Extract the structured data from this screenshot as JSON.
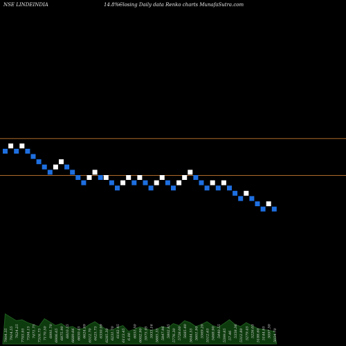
{
  "header": {
    "ticker": "NSE LINDEINDIA",
    "change": "14.8%~",
    "description": "Closing Daily data  Renko  charts MunafaSutra.com"
  },
  "colors": {
    "background": "#000000",
    "up_brick": "#ffffff",
    "down_brick": "#1e6fe0",
    "level_line": "#b06a2a",
    "volume_fill": "#0d3b0d",
    "volume_stroke": "#1f5a1f",
    "volume_label": "#dcdcdc"
  },
  "chart_data": {
    "type": "renko",
    "y_scale": "price (unlabeled)",
    "grid": false,
    "levels": [
      {
        "name": "level-line-upper",
        "value": 2
      },
      {
        "name": "level-line-lower",
        "value": -5
      }
    ],
    "bricks": [
      {
        "i": 0,
        "level": 0,
        "dir": "down"
      },
      {
        "i": 1,
        "level": 1,
        "dir": "up"
      },
      {
        "i": 2,
        "level": 0,
        "dir": "down"
      },
      {
        "i": 3,
        "level": 1,
        "dir": "up"
      },
      {
        "i": 4,
        "level": 0,
        "dir": "down"
      },
      {
        "i": 5,
        "level": -1,
        "dir": "down"
      },
      {
        "i": 6,
        "level": -2,
        "dir": "down"
      },
      {
        "i": 7,
        "level": -3,
        "dir": "down"
      },
      {
        "i": 8,
        "level": -4,
        "dir": "down"
      },
      {
        "i": 9,
        "level": -3,
        "dir": "up"
      },
      {
        "i": 10,
        "level": -2,
        "dir": "up"
      },
      {
        "i": 11,
        "level": -3,
        "dir": "down"
      },
      {
        "i": 12,
        "level": -4,
        "dir": "down"
      },
      {
        "i": 13,
        "level": -5,
        "dir": "down"
      },
      {
        "i": 14,
        "level": -6,
        "dir": "down"
      },
      {
        "i": 15,
        "level": -5,
        "dir": "up"
      },
      {
        "i": 16,
        "level": -4,
        "dir": "up"
      },
      {
        "i": 17,
        "level": -5,
        "dir": "down"
      },
      {
        "i": 18,
        "level": -5,
        "dir": "up"
      },
      {
        "i": 19,
        "level": -6,
        "dir": "down"
      },
      {
        "i": 20,
        "level": -7,
        "dir": "down"
      },
      {
        "i": 21,
        "level": -6,
        "dir": "up"
      },
      {
        "i": 22,
        "level": -5,
        "dir": "up"
      },
      {
        "i": 23,
        "level": -6,
        "dir": "down"
      },
      {
        "i": 24,
        "level": -5,
        "dir": "up"
      },
      {
        "i": 25,
        "level": -6,
        "dir": "down"
      },
      {
        "i": 26,
        "level": -7,
        "dir": "down"
      },
      {
        "i": 27,
        "level": -6,
        "dir": "up"
      },
      {
        "i": 28,
        "level": -5,
        "dir": "up"
      },
      {
        "i": 29,
        "level": -6,
        "dir": "down"
      },
      {
        "i": 30,
        "level": -7,
        "dir": "down"
      },
      {
        "i": 31,
        "level": -6,
        "dir": "up"
      },
      {
        "i": 32,
        "level": -5,
        "dir": "up"
      },
      {
        "i": 33,
        "level": -4,
        "dir": "up"
      },
      {
        "i": 34,
        "level": -5,
        "dir": "down"
      },
      {
        "i": 35,
        "level": -6,
        "dir": "down"
      },
      {
        "i": 36,
        "level": -7,
        "dir": "down"
      },
      {
        "i": 37,
        "level": -6,
        "dir": "up"
      },
      {
        "i": 38,
        "level": -7,
        "dir": "down"
      },
      {
        "i": 39,
        "level": -6,
        "dir": "up"
      },
      {
        "i": 40,
        "level": -7,
        "dir": "down"
      },
      {
        "i": 41,
        "level": -8,
        "dir": "down"
      },
      {
        "i": 42,
        "level": -9,
        "dir": "down"
      },
      {
        "i": 43,
        "level": -8,
        "dir": "up"
      },
      {
        "i": 44,
        "level": -9,
        "dir": "down"
      },
      {
        "i": 45,
        "level": -10,
        "dir": "down"
      },
      {
        "i": 46,
        "level": -11,
        "dir": "down"
      },
      {
        "i": 47,
        "level": -10,
        "dir": "up"
      },
      {
        "i": 48,
        "level": -11,
        "dir": "down"
      }
    ],
    "volume": {
      "relative": [
        0.62,
        0.55,
        0.48,
        0.5,
        0.44,
        0.4,
        0.36,
        0.52,
        0.45,
        0.38,
        0.42,
        0.34,
        0.36,
        0.3,
        0.32,
        0.4,
        0.46,
        0.38,
        0.3,
        0.28,
        0.34,
        0.38,
        0.26,
        0.3,
        0.35,
        0.32,
        0.28,
        0.3,
        0.36,
        0.33,
        0.42,
        0.38,
        0.48,
        0.44,
        0.36,
        0.4,
        0.46,
        0.38,
        0.34,
        0.42,
        0.5,
        0.4,
        0.36,
        0.44,
        0.38,
        0.32,
        0.3,
        0.28,
        0.26
      ],
      "labels": [
        "7904.35",
        "7914.55",
        "7624.25",
        "7703.95",
        "7594.15",
        "7471.75",
        "7316.75",
        "7170.50",
        "6991.70",
        "6906.65",
        "6875.90",
        "6810.35",
        "6689.66",
        "6650.45",
        "6624.99",
        "6512.70",
        "6425.75",
        "6350.99",
        "6285.30",
        "6231.70",
        "6182.45",
        "6113.45",
        "6.00",
        "6051.50",
        "6002.90",
        "5975.95",
        "5933.16",
        "5885.35",
        "5847.96",
        "5802.85",
        "5776.30",
        "5728.00",
        "5685.40",
        "5644.55",
        "5601.90",
        "5569.20",
        "5512.65",
        "5468.90",
        "5440.55",
        "5399.85",
        "57.46",
        "5358.36",
        "5312.80",
        "5279.45",
        "5226.05",
        "5188.60",
        "5144.95",
        "5097.30",
        "5054.70"
      ]
    }
  }
}
